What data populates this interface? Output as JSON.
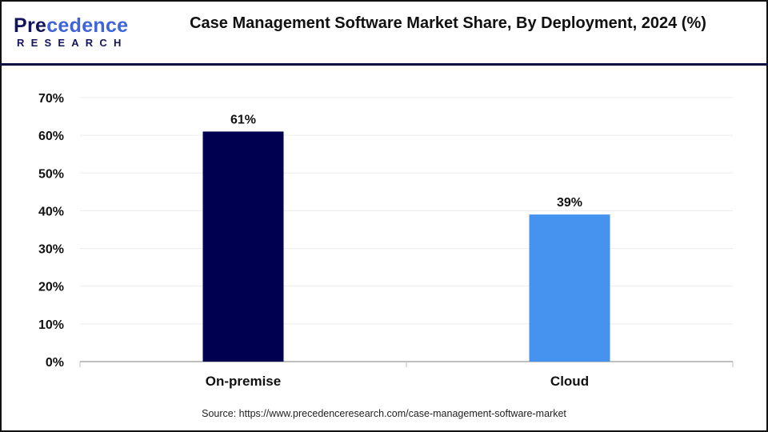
{
  "brand": {
    "logo_main": "Precedence",
    "logo_sub": "RESEARCH"
  },
  "title": "Case Management Software Market Share, By Deployment, 2024 (%)",
  "source": "Source: https://www.precedenceresearch.com/case-management-software-market",
  "colors": {
    "on_premise": "#000050",
    "cloud": "#4593ee",
    "header_line": "#0b0b3b"
  },
  "chart_data": {
    "type": "bar",
    "title": "Case Management Software Market Share, By Deployment, 2024 (%)",
    "categories": [
      "On-premise",
      "Cloud"
    ],
    "values": [
      61,
      39
    ],
    "data_labels": [
      "61%",
      "39%"
    ],
    "bar_colors": [
      "#000050",
      "#4593ee"
    ],
    "xlabel": "",
    "ylabel": "",
    "ylim": [
      0,
      70
    ],
    "yticks": [
      0,
      10,
      20,
      30,
      40,
      50,
      60,
      70
    ],
    "ytick_labels": [
      "0%",
      "10%",
      "20%",
      "30%",
      "40%",
      "50%",
      "60%",
      "70%"
    ],
    "grid": true,
    "legend": "none"
  }
}
